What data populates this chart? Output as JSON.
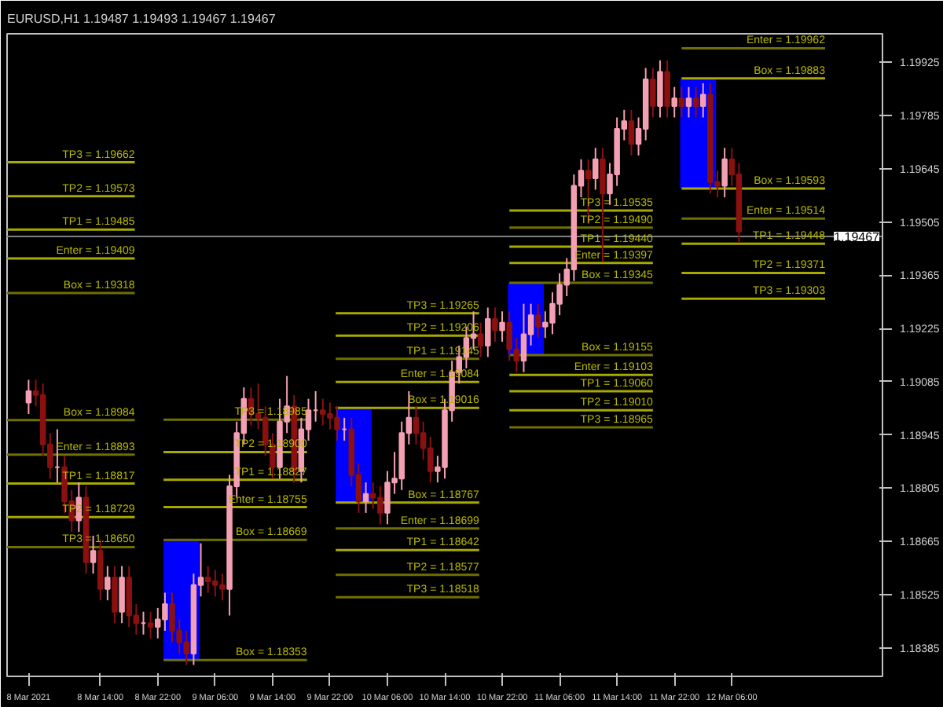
{
  "chart_data": {
    "type": "candlestick",
    "title": "EURUSD,H1 1.19487 1.19493 1.19467 1.19467",
    "x": [
      "2021-03-08T04:00",
      "2021-03-08T05:00",
      "2021-03-08T06:00",
      "2021-03-08T07:00",
      "2021-03-08T08:00",
      "2021-03-08T09:00",
      "2021-03-08T10:00",
      "2021-03-08T11:00",
      "2021-03-08T12:00",
      "2021-03-08T13:00",
      "2021-03-08T14:00",
      "2021-03-08T15:00",
      "2021-03-08T16:00",
      "2021-03-08T17:00",
      "2021-03-08T18:00",
      "2021-03-08T19:00",
      "2021-03-08T20:00",
      "2021-03-08T21:00",
      "2021-03-08T22:00",
      "2021-03-08T23:00",
      "2021-03-09T00:00",
      "2021-03-09T01:00",
      "2021-03-09T02:00",
      "2021-03-09T03:00",
      "2021-03-09T04:00",
      "2021-03-09T05:00",
      "2021-03-09T06:00",
      "2021-03-09T07:00",
      "2021-03-09T08:00",
      "2021-03-09T09:00",
      "2021-03-09T10:00",
      "2021-03-09T11:00",
      "2021-03-09T12:00",
      "2021-03-09T13:00",
      "2021-03-09T14:00",
      "2021-03-09T15:00",
      "2021-03-09T16:00",
      "2021-03-09T17:00",
      "2021-03-09T18:00",
      "2021-03-09T19:00",
      "2021-03-09T20:00",
      "2021-03-09T21:00",
      "2021-03-09T22:00",
      "2021-03-09T23:00",
      "2021-03-10T00:00",
      "2021-03-10T01:00",
      "2021-03-10T02:00",
      "2021-03-10T03:00",
      "2021-03-10T04:00",
      "2021-03-10T05:00",
      "2021-03-10T06:00",
      "2021-03-10T07:00",
      "2021-03-10T08:00",
      "2021-03-10T09:00",
      "2021-03-10T10:00",
      "2021-03-10T11:00",
      "2021-03-10T12:00",
      "2021-03-10T13:00",
      "2021-03-10T14:00",
      "2021-03-10T15:00",
      "2021-03-10T16:00",
      "2021-03-10T17:00",
      "2021-03-10T18:00",
      "2021-03-10T19:00",
      "2021-03-10T20:00",
      "2021-03-10T21:00",
      "2021-03-10T22:00",
      "2021-03-10T23:00",
      "2021-03-11T00:00",
      "2021-03-11T01:00",
      "2021-03-11T02:00",
      "2021-03-11T03:00",
      "2021-03-11T04:00",
      "2021-03-11T05:00",
      "2021-03-11T06:00",
      "2021-03-11T07:00",
      "2021-03-11T08:00",
      "2021-03-11T09:00",
      "2021-03-11T10:00",
      "2021-03-11T11:00",
      "2021-03-11T12:00",
      "2021-03-11T13:00",
      "2021-03-11T14:00",
      "2021-03-11T15:00",
      "2021-03-11T16:00",
      "2021-03-11T17:00",
      "2021-03-11T18:00",
      "2021-03-11T19:00",
      "2021-03-11T20:00",
      "2021-03-11T21:00",
      "2021-03-11T22:00",
      "2021-03-11T23:00",
      "2021-03-12T00:00",
      "2021-03-12T01:00",
      "2021-03-12T02:00",
      "2021-03-12T03:00",
      "2021-03-12T04:00",
      "2021-03-12T05:00",
      "2021-03-12T06:00",
      "2021-03-12T07:00"
    ],
    "ohlc": [
      [
        1.1903,
        1.1909,
        1.19,
        1.1906
      ],
      [
        1.1906,
        1.1909,
        1.1902,
        1.1905
      ],
      [
        1.1905,
        1.1908,
        1.1889,
        1.1892
      ],
      [
        1.1892,
        1.1895,
        1.1883,
        1.1886
      ],
      [
        1.1886,
        1.1896,
        1.1882,
        1.1886
      ],
      [
        1.1886,
        1.1889,
        1.1874,
        1.1877
      ],
      [
        1.1877,
        1.188,
        1.1869,
        1.1872
      ],
      [
        1.1872,
        1.1882,
        1.1869,
        1.1878
      ],
      [
        1.1878,
        1.1881,
        1.1858,
        1.1861
      ],
      [
        1.1861,
        1.1868,
        1.1858,
        1.1864
      ],
      [
        1.1864,
        1.1867,
        1.1851,
        1.1854
      ],
      [
        1.1854,
        1.186,
        1.1851,
        1.1857
      ],
      [
        1.1857,
        1.186,
        1.1845,
        1.1848
      ],
      [
        1.1848,
        1.186,
        1.1845,
        1.1857
      ],
      [
        1.1857,
        1.186,
        1.1844,
        1.1847
      ],
      [
        1.1847,
        1.185,
        1.1842,
        1.1845
      ],
      [
        1.1845,
        1.1848,
        1.1842,
        1.1845
      ],
      [
        1.1845,
        1.1848,
        1.1841,
        1.1844
      ],
      [
        1.1844,
        1.1849,
        1.1841,
        1.1846
      ],
      [
        1.1846,
        1.1853,
        1.1843,
        1.185
      ],
      [
        1.185,
        1.1853,
        1.184,
        1.1843
      ],
      [
        1.1843,
        1.1846,
        1.1837,
        1.184
      ],
      [
        1.184,
        1.1843,
        1.1834,
        1.1837
      ],
      [
        1.1837,
        1.1858,
        1.1834,
        1.1855
      ],
      [
        1.1855,
        1.1866,
        1.1852,
        1.1857
      ],
      [
        1.1857,
        1.186,
        1.1853,
        1.1856
      ],
      [
        1.1856,
        1.1859,
        1.1852,
        1.1855
      ],
      [
        1.1855,
        1.1858,
        1.1851,
        1.1854
      ],
      [
        1.1854,
        1.1884,
        1.1847,
        1.1881
      ],
      [
        1.1881,
        1.1898,
        1.1878,
        1.1895
      ],
      [
        1.1895,
        1.1907,
        1.1892,
        1.1904
      ],
      [
        1.1904,
        1.1907,
        1.1897,
        1.19
      ],
      [
        1.19,
        1.1908,
        1.1896,
        1.1899
      ],
      [
        1.1899,
        1.1902,
        1.1889,
        1.1892
      ],
      [
        1.1892,
        1.1895,
        1.1883,
        1.1886
      ],
      [
        1.1886,
        1.1904,
        1.1883,
        1.1898
      ],
      [
        1.1898,
        1.191,
        1.1895,
        1.1902
      ],
      [
        1.1902,
        1.1905,
        1.1882,
        1.1885
      ],
      [
        1.1885,
        1.1899,
        1.1882,
        1.1896
      ],
      [
        1.1896,
        1.1904,
        1.1893,
        1.1901
      ],
      [
        1.1901,
        1.1906,
        1.1898,
        1.1901
      ],
      [
        1.1901,
        1.1904,
        1.1897,
        1.19
      ],
      [
        1.19,
        1.1903,
        1.1896,
        1.1899
      ],
      [
        1.1899,
        1.1902,
        1.1893,
        1.1896
      ],
      [
        1.1896,
        1.1899,
        1.1893,
        1.1896
      ],
      [
        1.1896,
        1.1899,
        1.1881,
        1.1884
      ],
      [
        1.1884,
        1.1887,
        1.1874,
        1.1877
      ],
      [
        1.1877,
        1.1882,
        1.1874,
        1.1879
      ],
      [
        1.1879,
        1.1882,
        1.1875,
        1.1878
      ],
      [
        1.1878,
        1.1881,
        1.1871,
        1.1874
      ],
      [
        1.1874,
        1.1885,
        1.1871,
        1.1882
      ],
      [
        1.1882,
        1.189,
        1.1879,
        1.1883
      ],
      [
        1.1883,
        1.1898,
        1.188,
        1.1895
      ],
      [
        1.1895,
        1.1906,
        1.1892,
        1.1899
      ],
      [
        1.1899,
        1.1902,
        1.1892,
        1.1895
      ],
      [
        1.1895,
        1.1898,
        1.1888,
        1.1891
      ],
      [
        1.1891,
        1.1894,
        1.1882,
        1.1885
      ],
      [
        1.1885,
        1.1889,
        1.1882,
        1.1886
      ],
      [
        1.1886,
        1.1904,
        1.1883,
        1.1901
      ],
      [
        1.1901,
        1.1914,
        1.1898,
        1.1911
      ],
      [
        1.1911,
        1.1918,
        1.1908,
        1.1915
      ],
      [
        1.1915,
        1.1923,
        1.1912,
        1.192
      ],
      [
        1.192,
        1.1927,
        1.1917,
        1.1921
      ],
      [
        1.1921,
        1.1924,
        1.1915,
        1.1918
      ],
      [
        1.1918,
        1.1928,
        1.1915,
        1.1925
      ],
      [
        1.1925,
        1.1928,
        1.1919,
        1.1922
      ],
      [
        1.1922,
        1.1927,
        1.1919,
        1.1924
      ],
      [
        1.1924,
        1.1927,
        1.1914,
        1.1917
      ],
      [
        1.1917,
        1.192,
        1.1911,
        1.1914
      ],
      [
        1.1914,
        1.1929,
        1.1911,
        1.1921
      ],
      [
        1.1921,
        1.1929,
        1.1918,
        1.1926
      ],
      [
        1.1926,
        1.1929,
        1.192,
        1.1923
      ],
      [
        1.1923,
        1.1927,
        1.192,
        1.1924
      ],
      [
        1.1924,
        1.1932,
        1.1921,
        1.1929
      ],
      [
        1.1929,
        1.1937,
        1.1926,
        1.1934
      ],
      [
        1.1934,
        1.1941,
        1.1931,
        1.1938
      ],
      [
        1.1938,
        1.1963,
        1.1935,
        1.196
      ],
      [
        1.196,
        1.1967,
        1.1957,
        1.1964
      ],
      [
        1.1964,
        1.1967,
        1.195,
        1.1962
      ],
      [
        1.1962,
        1.197,
        1.1959,
        1.1967
      ],
      [
        1.1967,
        1.197,
        1.194,
        1.1958
      ],
      [
        1.1958,
        1.1966,
        1.1955,
        1.1963
      ],
      [
        1.1963,
        1.1978,
        1.196,
        1.1975
      ],
      [
        1.1975,
        1.198,
        1.1972,
        1.1977
      ],
      [
        1.1977,
        1.198,
        1.1968,
        1.1971
      ],
      [
        1.1971,
        1.1978,
        1.1968,
        1.1975
      ],
      [
        1.1975,
        1.1991,
        1.1972,
        1.1988
      ],
      [
        1.1988,
        1.1991,
        1.1978,
        1.1981
      ],
      [
        1.1981,
        1.1993,
        1.1978,
        1.199
      ],
      [
        1.199,
        1.1993,
        1.1978,
        1.1981
      ],
      [
        1.1981,
        1.1986,
        1.1978,
        1.1983
      ],
      [
        1.1983,
        1.1986,
        1.1978,
        1.1981
      ],
      [
        1.1981,
        1.1986,
        1.1978,
        1.1983
      ],
      [
        1.1983,
        1.1986,
        1.1978,
        1.1981
      ],
      [
        1.1981,
        1.1987,
        1.1978,
        1.1984
      ],
      [
        1.1984,
        1.1987,
        1.1958,
        1.1961
      ],
      [
        1.1961,
        1.1964,
        1.1957,
        1.196
      ],
      [
        1.196,
        1.197,
        1.1957,
        1.1967
      ],
      [
        1.1967,
        1.197,
        1.196,
        1.1963
      ],
      [
        1.1963,
        1.1966,
        1.1945,
        1.1948
      ]
    ],
    "colors": [
      "#f4a0b4",
      "#8b1010",
      "#8b1010",
      "#8b1010",
      "#f4a0b4",
      "#8b1010",
      "#8b1010",
      "#f4a0b4",
      "#8b1010",
      "#f4a0b4",
      "#8b1010",
      "#f4a0b4",
      "#8b1010",
      "#f4a0b4",
      "#8b1010",
      "#8b1010",
      "#f4a0b4",
      "#8b1010",
      "#f4a0b4",
      "#f4a0b4",
      "#8b1010",
      "#8b1010",
      "#8b1010",
      "#f4a0b4",
      "#f4a0b4",
      "#8b1010",
      "#8b1010",
      "#8b1010",
      "#f4a0b4",
      "#f4a0b4",
      "#f4a0b4",
      "#8b1010",
      "#8b1010",
      "#8b1010",
      "#8b1010",
      "#f4a0b4",
      "#f4a0b4",
      "#8b1010",
      "#f4a0b4",
      "#f4a0b4",
      "#f4a0b4",
      "#8b1010",
      "#8b1010",
      "#8b1010",
      "#f4a0b4",
      "#8b1010",
      "#8b1010",
      "#f4a0b4",
      "#8b1010",
      "#8b1010",
      "#f4a0b4",
      "#f4a0b4",
      "#f4a0b4",
      "#f4a0b4",
      "#8b1010",
      "#8b1010",
      "#8b1010",
      "#f4a0b4",
      "#f4a0b4",
      "#f4a0b4",
      "#f4a0b4",
      "#f4a0b4",
      "#f4a0b4",
      "#8b1010",
      "#f4a0b4",
      "#8b1010",
      "#f4a0b4",
      "#8b1010",
      "#8b1010",
      "#f4a0b4",
      "#f4a0b4",
      "#8b1010",
      "#f4a0b4",
      "#f4a0b4",
      "#f4a0b4",
      "#f4a0b4",
      "#f4a0b4",
      "#f4a0b4",
      "#8b1010",
      "#f4a0b4",
      "#8b1010",
      "#f4a0b4",
      "#f4a0b4",
      "#f4a0b4",
      "#8b1010",
      "#f4a0b4",
      "#f4a0b4",
      "#8b1010",
      "#f4a0b4",
      "#8b1010",
      "#f4a0b4",
      "#8b1010",
      "#f4a0b4",
      "#8b1010",
      "#f4a0b4",
      "#8b1010",
      "#8b1010",
      "#f4a0b4",
      "#8b1010",
      "#8b1010"
    ],
    "xlim": [
      "2021-03-08T01:00",
      "2021-03-13T03:00"
    ],
    "ylim": [
      1.1831,
      1.2
    ],
    "xticks": [
      {
        "value": "2021-03-08T04:00",
        "label": "8 Mar 2021"
      },
      {
        "value": "2021-03-08T14:00",
        "label": "8 Mar 14:00"
      },
      {
        "value": "2021-03-08T22:00",
        "label": "8 Mar 22:00"
      },
      {
        "value": "2021-03-09T06:00",
        "label": "9 Mar 06:00"
      },
      {
        "value": "2021-03-09T14:00",
        "label": "9 Mar 14:00"
      },
      {
        "value": "2021-03-09T22:00",
        "label": "9 Mar 22:00"
      },
      {
        "value": "2021-03-10T06:00",
        "label": "10 Mar 06:00"
      },
      {
        "value": "2021-03-10T14:00",
        "label": "10 Mar 14:00"
      },
      {
        "value": "2021-03-10T22:00",
        "label": "10 Mar 22:00"
      },
      {
        "value": "2021-03-11T06:00",
        "label": "11 Mar 06:00"
      },
      {
        "value": "2021-03-11T14:00",
        "label": "11 Mar 14:00"
      },
      {
        "value": "2021-03-11T22:00",
        "label": "11 Mar 22:00"
      },
      {
        "value": "2021-03-12T06:00",
        "label": "12 Mar 06:00"
      }
    ],
    "yticks": [
      1.19925,
      1.19785,
      1.19645,
      1.19505,
      1.19365,
      1.19225,
      1.19085,
      1.18945,
      1.18805,
      1.18665,
      1.18525,
      1.18385
    ],
    "ref_lines": [
      {
        "axis": "y",
        "value": 1.19467,
        "label": "1.19467",
        "color": "#808080"
      }
    ],
    "series": [
      {
        "type": "bar",
        "color": "#0000ff",
        "x": [
          "2021-03-09T01:18",
          "2021-03-10T01:18",
          "2021-03-11T01:18",
          "2021-03-12T01:18"
        ],
        "base": [
          1.18353,
          1.18767,
          1.19155,
          1.19593
        ],
        "values": [
          0.00316,
          0.00249,
          0.0019,
          0.0029
        ]
      },
      {
        "type": "line",
        "color": "#a8a800",
        "x": [
          "2021-03-08T01:00",
          "2021-03-08T18:48"
        ],
        "values": [
          1.19662,
          1.19662
        ]
      },
      {
        "type": "line",
        "color": "#a8a800",
        "x": [
          "2021-03-08T01:00",
          "2021-03-08T18:48"
        ],
        "values": [
          1.19573,
          1.19573
        ]
      },
      {
        "type": "line",
        "color": "#a8a800",
        "x": [
          "2021-03-08T01:00",
          "2021-03-08T18:48"
        ],
        "values": [
          1.19485,
          1.19485
        ]
      },
      {
        "type": "line",
        "color": "#a8a800",
        "x": [
          "2021-03-08T01:00",
          "2021-03-08T18:48"
        ],
        "values": [
          1.19409,
          1.19409
        ]
      },
      {
        "type": "line",
        "color": "#707000",
        "x": [
          "2021-03-08T01:00",
          "2021-03-08T18:48"
        ],
        "values": [
          1.19318,
          1.19318
        ]
      },
      {
        "type": "line",
        "color": "#707000",
        "x": [
          "2021-03-08T01:00",
          "2021-03-08T18:48"
        ],
        "values": [
          1.18984,
          1.18984
        ]
      },
      {
        "type": "line",
        "color": "#707000",
        "x": [
          "2021-03-08T01:00",
          "2021-03-08T18:48"
        ],
        "values": [
          1.18893,
          1.18893
        ]
      },
      {
        "type": "line",
        "color": "#a8a800",
        "x": [
          "2021-03-08T01:00",
          "2021-03-08T18:48"
        ],
        "values": [
          1.18817,
          1.18817
        ]
      },
      {
        "type": "line",
        "color": "#a8a800",
        "x": [
          "2021-03-08T01:00",
          "2021-03-08T18:48"
        ],
        "values": [
          1.18729,
          1.18729
        ]
      },
      {
        "type": "line",
        "color": "#707000",
        "x": [
          "2021-03-08T01:00",
          "2021-03-08T18:48"
        ],
        "values": [
          1.1865,
          1.1865
        ]
      },
      {
        "type": "line",
        "color": "#707000",
        "x": [
          "2021-03-08T22:48",
          "2021-03-09T18:48"
        ],
        "values": [
          1.18985,
          1.18985
        ]
      },
      {
        "type": "line",
        "color": "#a8a800",
        "x": [
          "2021-03-08T22:48",
          "2021-03-09T18:48"
        ],
        "values": [
          1.189,
          1.189
        ]
      },
      {
        "type": "line",
        "color": "#a8a800",
        "x": [
          "2021-03-08T22:48",
          "2021-03-09T18:48"
        ],
        "values": [
          1.18827,
          1.18827
        ]
      },
      {
        "type": "line",
        "color": "#a8a800",
        "x": [
          "2021-03-08T22:48",
          "2021-03-09T18:48"
        ],
        "values": [
          1.18755,
          1.18755
        ]
      },
      {
        "type": "line",
        "color": "#707000",
        "x": [
          "2021-03-08T22:48",
          "2021-03-09T18:48"
        ],
        "values": [
          1.18669,
          1.18669
        ]
      },
      {
        "type": "line",
        "color": "#707000",
        "x": [
          "2021-03-08T22:48",
          "2021-03-09T18:48"
        ],
        "values": [
          1.18353,
          1.18353
        ]
      },
      {
        "type": "line",
        "color": "#a8a800",
        "x": [
          "2021-03-09T22:48",
          "2021-03-10T18:48"
        ],
        "values": [
          1.19265,
          1.19265
        ]
      },
      {
        "type": "line",
        "color": "#a8a800",
        "x": [
          "2021-03-09T22:48",
          "2021-03-10T18:48"
        ],
        "values": [
          1.19206,
          1.19206
        ]
      },
      {
        "type": "line",
        "color": "#707000",
        "x": [
          "2021-03-09T22:48",
          "2021-03-10T18:48"
        ],
        "values": [
          1.19145,
          1.19145
        ]
      },
      {
        "type": "line",
        "color": "#a8a800",
        "x": [
          "2021-03-09T22:48",
          "2021-03-10T18:48"
        ],
        "values": [
          1.19084,
          1.19084
        ]
      },
      {
        "type": "line",
        "color": "#a8a800",
        "x": [
          "2021-03-09T22:48",
          "2021-03-10T18:48"
        ],
        "values": [
          1.19016,
          1.19016
        ]
      },
      {
        "type": "line",
        "color": "#a8a800",
        "x": [
          "2021-03-09T22:48",
          "2021-03-10T18:48"
        ],
        "values": [
          1.18767,
          1.18767
        ]
      },
      {
        "type": "line",
        "color": "#707000",
        "x": [
          "2021-03-09T22:48",
          "2021-03-10T18:48"
        ],
        "values": [
          1.18699,
          1.18699
        ]
      },
      {
        "type": "line",
        "color": "#a8a800",
        "x": [
          "2021-03-09T22:48",
          "2021-03-10T18:48"
        ],
        "values": [
          1.18642,
          1.18642
        ]
      },
      {
        "type": "line",
        "color": "#707000",
        "x": [
          "2021-03-09T22:48",
          "2021-03-10T18:48"
        ],
        "values": [
          1.18577,
          1.18577
        ]
      },
      {
        "type": "line",
        "color": "#707000",
        "x": [
          "2021-03-09T22:48",
          "2021-03-10T18:48"
        ],
        "values": [
          1.18518,
          1.18518
        ]
      },
      {
        "type": "line",
        "color": "#a8a800",
        "x": [
          "2021-03-10T23:00",
          "2021-03-11T19:00"
        ],
        "values": [
          1.19535,
          1.19535
        ]
      },
      {
        "type": "line",
        "color": "#707000",
        "x": [
          "2021-03-10T23:00",
          "2021-03-11T19:00"
        ],
        "values": [
          1.1949,
          1.1949
        ]
      },
      {
        "type": "line",
        "color": "#a8a800",
        "x": [
          "2021-03-10T23:00",
          "2021-03-11T19:00"
        ],
        "values": [
          1.1944,
          1.1944
        ]
      },
      {
        "type": "line",
        "color": "#a8a800",
        "x": [
          "2021-03-10T23:00",
          "2021-03-11T19:00"
        ],
        "values": [
          1.19397,
          1.19397
        ]
      },
      {
        "type": "line",
        "color": "#707000",
        "x": [
          "2021-03-10T23:00",
          "2021-03-11T19:00"
        ],
        "values": [
          1.19345,
          1.19345
        ]
      },
      {
        "type": "line",
        "color": "#707000",
        "x": [
          "2021-03-10T23:00",
          "2021-03-11T19:00"
        ],
        "values": [
          1.19155,
          1.19155
        ]
      },
      {
        "type": "line",
        "color": "#a8a800",
        "x": [
          "2021-03-10T23:00",
          "2021-03-11T19:00"
        ],
        "values": [
          1.19103,
          1.19103
        ]
      },
      {
        "type": "line",
        "color": "#a8a800",
        "x": [
          "2021-03-10T23:00",
          "2021-03-11T19:00"
        ],
        "values": [
          1.1906,
          1.1906
        ]
      },
      {
        "type": "line",
        "color": "#a8a800",
        "x": [
          "2021-03-10T23:00",
          "2021-03-11T19:00"
        ],
        "values": [
          1.1901,
          1.1901
        ]
      },
      {
        "type": "line",
        "color": "#707000",
        "x": [
          "2021-03-10T23:00",
          "2021-03-11T19:00"
        ],
        "values": [
          1.18965,
          1.18965
        ]
      },
      {
        "type": "line",
        "color": "#707000",
        "x": [
          "2021-03-11T23:00",
          "2021-03-12T19:00"
        ],
        "values": [
          1.19962,
          1.19962
        ]
      },
      {
        "type": "line",
        "color": "#a8a800",
        "x": [
          "2021-03-11T23:00",
          "2021-03-12T19:00"
        ],
        "values": [
          1.19883,
          1.19883
        ]
      },
      {
        "type": "line",
        "color": "#a8a800",
        "x": [
          "2021-03-11T23:00",
          "2021-03-12T19:00"
        ],
        "values": [
          1.19593,
          1.19593
        ]
      },
      {
        "type": "line",
        "color": "#707000",
        "x": [
          "2021-03-11T23:00",
          "2021-03-12T19:00"
        ],
        "values": [
          1.19514,
          1.19514
        ]
      },
      {
        "type": "line",
        "color": "#a8a800",
        "x": [
          "2021-03-11T23:00",
          "2021-03-12T19:00"
        ],
        "values": [
          1.19448,
          1.19448
        ]
      },
      {
        "type": "line",
        "color": "#a8a800",
        "x": [
          "2021-03-11T23:00",
          "2021-03-12T19:00"
        ],
        "values": [
          1.19371,
          1.19371
        ]
      },
      {
        "type": "line",
        "color": "#a8a800",
        "x": [
          "2021-03-11T23:00",
          "2021-03-12T19:00"
        ],
        "values": [
          1.19303,
          1.19303
        ]
      }
    ],
    "annotations": [
      {
        "text": "TP3 = 1.19662",
        "x": "2021-03-08T18:48",
        "y": 1.19662
      },
      {
        "text": "TP2 = 1.19573",
        "x": "2021-03-08T18:48",
        "y": 1.19573
      },
      {
        "text": "TP1 = 1.19485",
        "x": "2021-03-08T18:48",
        "y": 1.19485
      },
      {
        "text": "Enter = 1.19409",
        "x": "2021-03-08T18:48",
        "y": 1.19409
      },
      {
        "text": "Box = 1.19318",
        "x": "2021-03-08T18:48",
        "y": 1.19318
      },
      {
        "text": "Box = 1.18984",
        "x": "2021-03-08T18:48",
        "y": 1.18984
      },
      {
        "text": "Enter = 1.18893",
        "x": "2021-03-08T18:48",
        "y": 1.18893
      },
      {
        "text": "TP1 = 1.18817",
        "x": "2021-03-08T18:48",
        "y": 1.18817
      },
      {
        "text": "TP2 = 1.18729",
        "x": "2021-03-08T18:48",
        "y": 1.18729
      },
      {
        "text": "TP3 = 1.18650",
        "x": "2021-03-08T18:48",
        "y": 1.1865
      },
      {
        "text": "TP3 = 1.18985",
        "x": "2021-03-09T18:48",
        "y": 1.18985
      },
      {
        "text": "TP2 = 1.18900",
        "x": "2021-03-09T18:48",
        "y": 1.189
      },
      {
        "text": "TP1 = 1.18827",
        "x": "2021-03-09T18:48",
        "y": 1.18827
      },
      {
        "text": "Enter = 1.18755",
        "x": "2021-03-09T18:48",
        "y": 1.18755
      },
      {
        "text": "Box = 1.18669",
        "x": "2021-03-09T18:48",
        "y": 1.18669
      },
      {
        "text": "Box = 1.18353",
        "x": "2021-03-09T18:48",
        "y": 1.18353
      },
      {
        "text": "TP3 = 1.19265",
        "x": "2021-03-10T18:48",
        "y": 1.19265
      },
      {
        "text": "TP2 = 1.19206",
        "x": "2021-03-10T18:48",
        "y": 1.19206
      },
      {
        "text": "TP1 = 1.19145",
        "x": "2021-03-10T18:48",
        "y": 1.19145
      },
      {
        "text": "Enter = 1.19084",
        "x": "2021-03-10T18:48",
        "y": 1.19084
      },
      {
        "text": "Box = 1.19016",
        "x": "2021-03-10T18:48",
        "y": 1.19016
      },
      {
        "text": "Box = 1.18767",
        "x": "2021-03-10T18:48",
        "y": 1.18767
      },
      {
        "text": "Enter = 1.18699",
        "x": "2021-03-10T18:48",
        "y": 1.18699
      },
      {
        "text": "TP1 = 1.18642",
        "x": "2021-03-10T18:48",
        "y": 1.18642
      },
      {
        "text": "TP2 = 1.18577",
        "x": "2021-03-10T18:48",
        "y": 1.18577
      },
      {
        "text": "TP3 = 1.18518",
        "x": "2021-03-10T18:48",
        "y": 1.18518
      },
      {
        "text": "TP3 = 1.19535",
        "x": "2021-03-11T19:00",
        "y": 1.19535
      },
      {
        "text": "TP2 = 1.19490",
        "x": "2021-03-11T19:00",
        "y": 1.1949
      },
      {
        "text": "TP1 = 1.19440",
        "x": "2021-03-11T19:00",
        "y": 1.1944
      },
      {
        "text": "Enter = 1.19397",
        "x": "2021-03-11T19:00",
        "y": 1.19397
      },
      {
        "text": "Box = 1.19345",
        "x": "2021-03-11T19:00",
        "y": 1.19345
      },
      {
        "text": "Box = 1.19155",
        "x": "2021-03-11T19:00",
        "y": 1.19155
      },
      {
        "text": "Enter = 1.19103",
        "x": "2021-03-11T19:00",
        "y": 1.19103
      },
      {
        "text": "TP1 = 1.19060",
        "x": "2021-03-11T19:00",
        "y": 1.1906
      },
      {
        "text": "TP2 = 1.19010",
        "x": "2021-03-11T19:00",
        "y": 1.1901
      },
      {
        "text": "TP3 = 1.18965",
        "x": "2021-03-11T19:00",
        "y": 1.18965
      },
      {
        "text": "Enter = 1.19962",
        "x": "2021-03-12T19:00",
        "y": 1.19962
      },
      {
        "text": "Box = 1.19883",
        "x": "2021-03-12T19:00",
        "y": 1.19883
      },
      {
        "text": "Box = 1.19593",
        "x": "2021-03-12T19:00",
        "y": 1.19593
      },
      {
        "text": "Enter = 1.19514",
        "x": "2021-03-12T19:00",
        "y": 1.19514
      },
      {
        "text": "TP1 = 1.19448",
        "x": "2021-03-12T19:00",
        "y": 1.19448
      },
      {
        "text": "TP2 = 1.19371",
        "x": "2021-03-12T19:00",
        "y": 1.19371
      },
      {
        "text": "TP3 = 1.19303",
        "x": "2021-03-12T19:00",
        "y": 1.19303
      }
    ]
  }
}
